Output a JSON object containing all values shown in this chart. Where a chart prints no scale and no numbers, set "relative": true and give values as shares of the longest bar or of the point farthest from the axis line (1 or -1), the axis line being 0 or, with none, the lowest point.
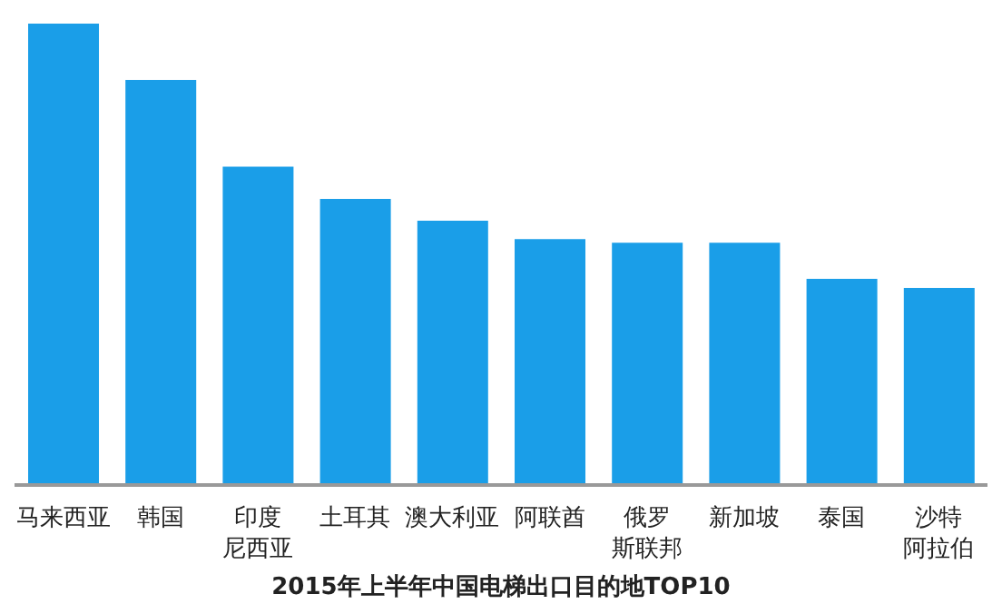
{
  "chart_data": {
    "type": "bar",
    "title": "2015年上半年中国电梯出口目的地TOP10",
    "relative": true,
    "categories": [
      "马来西亚",
      "韩国",
      "印度尼西亚",
      "土耳其",
      "澳大利亚",
      "阿联酋",
      "俄罗斯联邦",
      "新加坡",
      "泰国",
      "沙特阿拉伯"
    ],
    "values": [
      1,
      0.878,
      0.69,
      0.62,
      0.573,
      0.533,
      0.525,
      0.525,
      0.447,
      0.427
    ],
    "color": "#1a9ee8",
    "grid": false,
    "legend": false
  }
}
